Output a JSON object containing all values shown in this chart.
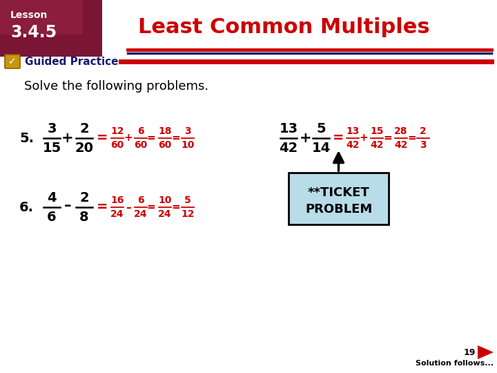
{
  "title": "Least Common Multiples",
  "lesson_label": "Lesson",
  "lesson_number": "3.4.5",
  "guided_practice": "Guided Practice",
  "solve_text": "Solve the following problems.",
  "bg_color": "#ffffff",
  "title_color": "#cc0000",
  "dark_red": "#cc0000",
  "dark_navy": "#1a1a6e",
  "red_color": "#cc0000",
  "black_color": "#000000",
  "lesson_tab_color": "#7b1535",
  "ticket_bg": "#b8dce8",
  "page_number": "19",
  "solution_text": "Solution follows..."
}
